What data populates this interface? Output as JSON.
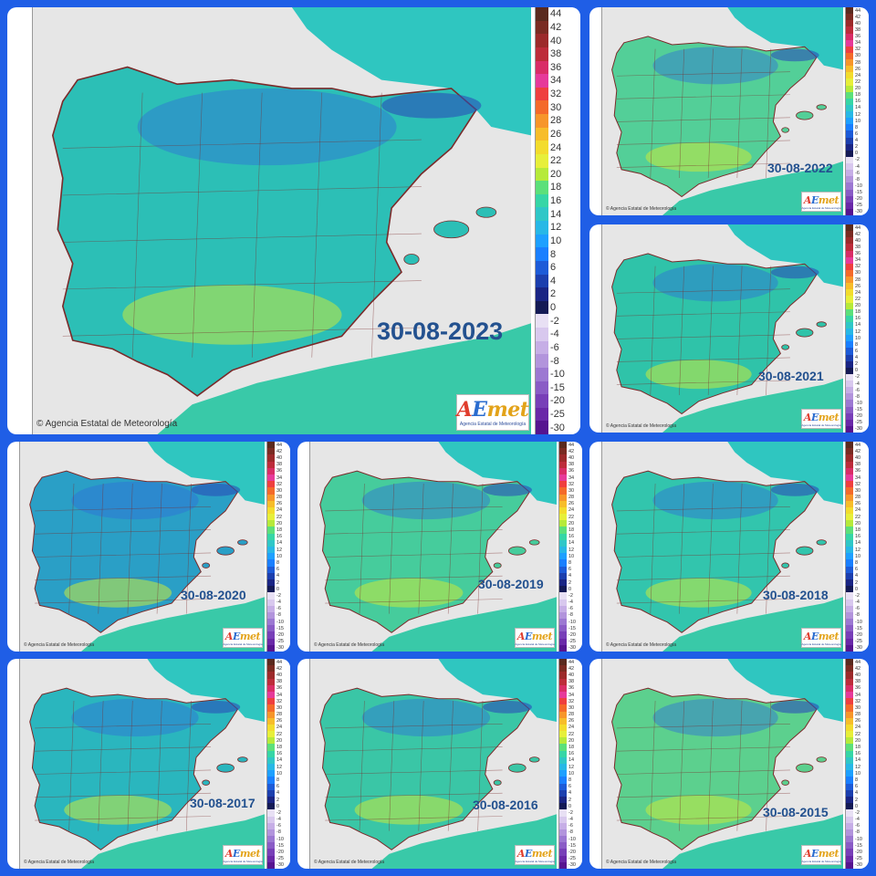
{
  "scale": {
    "labels": [
      "44",
      "42",
      "40",
      "38",
      "36",
      "34",
      "32",
      "30",
      "28",
      "26",
      "24",
      "22",
      "20",
      "18",
      "16",
      "14",
      "12",
      "10",
      "8",
      "6",
      "4",
      "2",
      "0",
      "-2",
      "-4",
      "-6",
      "-8",
      "-10",
      "-15",
      "-20",
      "-25",
      "-30"
    ],
    "colors": [
      "#5a2a1e",
      "#7a2b22",
      "#9c2a2a",
      "#bd2c3a",
      "#d92d66",
      "#e63a9a",
      "#ef3f3f",
      "#f46a2a",
      "#f7962a",
      "#f7bd2a",
      "#f3dc2d",
      "#e7ef3a",
      "#b6ea3a",
      "#5ce07a",
      "#36d6a6",
      "#2fc7c7",
      "#28b8e6",
      "#1ea0ff",
      "#1a7fff",
      "#1d5bd8",
      "#1c3fae",
      "#1a2584",
      "#141a55",
      "#e8e0f4",
      "#d8c8ee",
      "#c6aee6",
      "#b294dc",
      "#9c78d2",
      "#8a5cc6",
      "#783fb8",
      "#6a28a8",
      "#561490"
    ]
  },
  "credit": "© Agencia Estatal de Meteorología",
  "logo": {
    "a": "A",
    "e": "E",
    "m": "met",
    "sub": "Agencia Estatal de Meteorología"
  },
  "panels": [
    {
      "date": "30-08-2023",
      "fill": "#2cbfb6"
    },
    {
      "date": "30-08-2022",
      "fill": "#53cf98"
    },
    {
      "date": "30-08-2021",
      "fill": "#2fc3a9"
    },
    {
      "date": "30-08-2020",
      "fill": "#2a9fc6"
    },
    {
      "date": "30-08-2019",
      "fill": "#46cc9c"
    },
    {
      "date": "30-08-2018",
      "fill": "#32c5ad"
    },
    {
      "date": "30-08-2017",
      "fill": "#2ab6be"
    },
    {
      "date": "30-08-2016",
      "fill": "#3ac6a6"
    },
    {
      "date": "30-08-2015",
      "fill": "#5cd08e"
    }
  ]
}
